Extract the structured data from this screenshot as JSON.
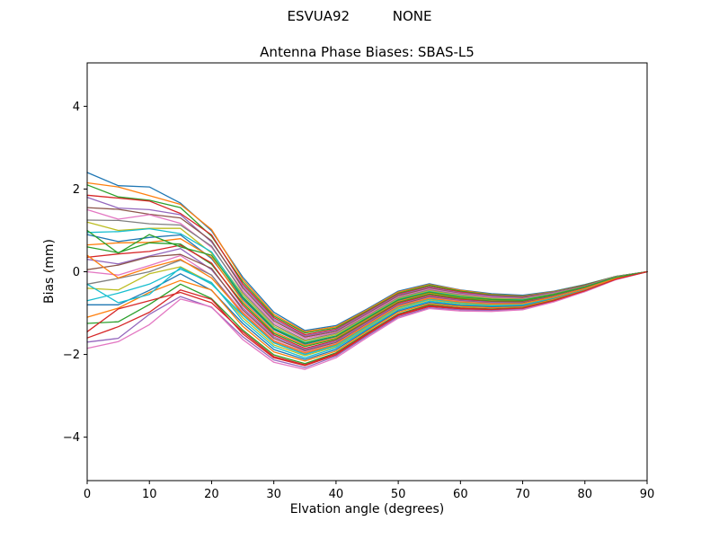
{
  "chart_data": {
    "type": "line",
    "suptitle": "ESVUA92          NONE",
    "title": "Antenna Phase Biases: SBAS-L5",
    "xlabel": "Elvation angle (degrees)",
    "ylabel": "Bias (mm)",
    "xlim": [
      0,
      90
    ],
    "ylim": [
      -5.05,
      5.05
    ],
    "grid": false,
    "legend": null,
    "xticks": {
      "values": [
        0,
        10,
        20,
        30,
        40,
        50,
        60,
        70,
        80,
        90
      ],
      "labels": [
        "0",
        "10",
        "20",
        "30",
        "40",
        "50",
        "60",
        "70",
        "80",
        "90"
      ]
    },
    "yticks": {
      "values": [
        -4,
        -2,
        0,
        2,
        4
      ],
      "labels": [
        "−4",
        "−2",
        "0",
        "2",
        "4"
      ]
    },
    "x": [
      0,
      5,
      10,
      15,
      20,
      25,
      30,
      35,
      40,
      45,
      50,
      55,
      60,
      65,
      70,
      75,
      80,
      85,
      90
    ],
    "series": [
      {
        "color": "#1f77b4",
        "values": [
          2.4,
          2.08,
          2.05,
          1.66,
          0.99,
          -0.13,
          -0.98,
          -1.42,
          -1.3,
          -0.9,
          -0.47,
          -0.29,
          -0.44,
          -0.53,
          -0.57,
          -0.47,
          -0.31,
          -0.11,
          0.0
        ]
      },
      {
        "color": "#ff7f0e",
        "values": [
          2.15,
          2.05,
          1.84,
          1.63,
          1.02,
          -0.18,
          -1.03,
          -1.45,
          -1.33,
          -0.92,
          -0.49,
          -0.31,
          -0.45,
          -0.55,
          -0.59,
          -0.48,
          -0.32,
          -0.11,
          0.0
        ]
      },
      {
        "color": "#2ca02c",
        "values": [
          2.1,
          1.81,
          1.73,
          1.55,
          0.86,
          -0.24,
          -1.07,
          -1.48,
          -1.36,
          -0.95,
          -0.52,
          -0.33,
          -0.47,
          -0.56,
          -0.6,
          -0.49,
          -0.32,
          -0.11,
          0.0
        ]
      },
      {
        "color": "#d62728",
        "values": [
          1.85,
          1.78,
          1.71,
          1.41,
          0.89,
          -0.29,
          -1.11,
          -1.52,
          -1.39,
          -0.97,
          -0.54,
          -0.36,
          -0.49,
          -0.58,
          -0.61,
          -0.5,
          -0.33,
          -0.12,
          0.0
        ]
      },
      {
        "color": "#9467bd",
        "values": [
          1.8,
          1.54,
          1.5,
          1.38,
          0.72,
          -0.34,
          -1.15,
          -1.55,
          -1.41,
          -0.99,
          -0.56,
          -0.38,
          -0.51,
          -0.59,
          -0.62,
          -0.5,
          -0.34,
          -0.12,
          0.0
        ]
      },
      {
        "color": "#8c564b",
        "values": [
          1.55,
          1.51,
          1.39,
          1.3,
          0.75,
          -0.39,
          -1.19,
          -1.58,
          -1.44,
          -1.02,
          -0.58,
          -0.4,
          -0.53,
          -0.61,
          -0.63,
          -0.51,
          -0.34,
          -0.12,
          0.0
        ]
      },
      {
        "color": "#e377c2",
        "values": [
          1.5,
          1.27,
          1.38,
          1.17,
          0.59,
          -0.45,
          -1.24,
          -1.61,
          -1.47,
          -1.04,
          -0.61,
          -0.42,
          -0.54,
          -0.62,
          -0.65,
          -0.52,
          -0.35,
          -0.12,
          0.0
        ]
      },
      {
        "color": "#7f7f7f",
        "values": [
          1.25,
          1.24,
          1.16,
          1.13,
          0.62,
          -0.5,
          -1.28,
          -1.65,
          -1.49,
          -1.07,
          -0.63,
          -0.44,
          -0.56,
          -0.64,
          -0.66,
          -0.53,
          -0.35,
          -0.13,
          0.0
        ]
      },
      {
        "color": "#bcbd22",
        "values": [
          1.2,
          1.0,
          1.05,
          1.05,
          0.45,
          -0.55,
          -1.32,
          -1.68,
          -1.52,
          -1.09,
          -0.65,
          -0.46,
          -0.58,
          -0.65,
          -0.67,
          -0.54,
          -0.36,
          -0.13,
          0.0
        ]
      },
      {
        "color": "#17becf",
        "values": [
          0.95,
          0.97,
          1.04,
          0.92,
          0.48,
          -0.6,
          -1.36,
          -1.71,
          -1.55,
          -1.11,
          -0.67,
          -0.48,
          -0.6,
          -0.67,
          -0.68,
          -0.55,
          -0.37,
          -0.13,
          0.0
        ]
      },
      {
        "color": "#1f77b4",
        "values": [
          0.9,
          0.73,
          0.83,
          0.89,
          0.32,
          -0.66,
          -1.4,
          -1.75,
          -1.57,
          -1.14,
          -0.7,
          -0.5,
          -0.62,
          -0.68,
          -0.69,
          -0.56,
          -0.37,
          -0.14,
          0.0
        ]
      },
      {
        "color": "#ff7f0e",
        "values": [
          0.65,
          0.7,
          0.71,
          0.8,
          0.35,
          -0.71,
          -1.45,
          -1.78,
          -1.6,
          -1.16,
          -0.72,
          -0.52,
          -0.63,
          -0.7,
          -0.71,
          -0.57,
          -0.38,
          -0.14,
          0.0
        ]
      },
      {
        "color": "#2ca02c",
        "values": [
          0.6,
          0.46,
          0.7,
          0.67,
          0.18,
          -0.76,
          -1.49,
          -1.81,
          -1.63,
          -1.19,
          -0.74,
          -0.54,
          -0.65,
          -0.71,
          -0.72,
          -0.58,
          -0.38,
          -0.14,
          0.0
        ]
      },
      {
        "color": "#d62728",
        "values": [
          0.35,
          0.43,
          0.49,
          0.64,
          0.21,
          -0.81,
          -1.53,
          -1.85,
          -1.66,
          -1.21,
          -0.76,
          -0.57,
          -0.67,
          -0.73,
          -0.73,
          -0.59,
          -0.39,
          -0.15,
          0.0
        ]
      },
      {
        "color": "#9467bd",
        "values": [
          0.3,
          0.19,
          0.38,
          0.56,
          0.05,
          -0.87,
          -1.57,
          -1.88,
          -1.68,
          -1.23,
          -0.79,
          -0.59,
          -0.69,
          -0.74,
          -0.74,
          -0.59,
          -0.4,
          -0.15,
          0.0
        ]
      },
      {
        "color": "#8c564b",
        "values": [
          0.05,
          0.16,
          0.36,
          0.42,
          0.08,
          -0.92,
          -1.61,
          -1.91,
          -1.71,
          -1.26,
          -0.81,
          -0.61,
          -0.71,
          -0.76,
          -0.75,
          -0.6,
          -0.4,
          -0.15,
          0.0
        ]
      },
      {
        "color": "#e377c2",
        "values": [
          0.0,
          -0.08,
          0.15,
          0.39,
          -0.09,
          -0.97,
          -1.66,
          -1.94,
          -1.74,
          -1.28,
          -0.83,
          -0.63,
          -0.72,
          -0.77,
          -0.77,
          -0.61,
          -0.41,
          -0.15,
          0.0
        ]
      },
      {
        "color": "#7f7f7f",
        "values": [
          -0.3,
          -0.16,
          0.0,
          0.28,
          -0.08,
          -1.04,
          -1.71,
          -1.99,
          -1.77,
          -1.31,
          -0.86,
          -0.66,
          -0.75,
          -0.79,
          -0.78,
          -0.62,
          -0.42,
          -0.16,
          0.0
        ]
      },
      {
        "color": "#bcbd22",
        "values": [
          -0.4,
          -0.44,
          -0.05,
          0.12,
          -0.27,
          -1.11,
          -1.77,
          -2.03,
          -1.81,
          -1.35,
          -0.89,
          -0.68,
          -0.77,
          -0.81,
          -0.8,
          -0.64,
          -0.42,
          -0.16,
          0.0
        ]
      },
      {
        "color": "#17becf",
        "values": [
          -0.7,
          -0.52,
          -0.3,
          0.06,
          -0.26,
          -1.18,
          -1.82,
          -2.08,
          -1.84,
          -1.38,
          -0.92,
          -0.71,
          -0.8,
          -0.83,
          -0.81,
          -0.65,
          -0.43,
          -0.17,
          0.0
        ]
      },
      {
        "color": "#1f77b4",
        "values": [
          -0.8,
          -0.8,
          -0.45,
          -0.05,
          -0.45,
          -1.25,
          -1.88,
          -2.12,
          -1.88,
          -1.41,
          -0.95,
          -0.74,
          -0.82,
          -0.85,
          -0.83,
          -0.66,
          -0.44,
          -0.17,
          0.0
        ]
      },
      {
        "color": "#ff7f0e",
        "values": [
          -1.1,
          -0.88,
          -0.5,
          -0.21,
          -0.44,
          -1.32,
          -1.94,
          -2.16,
          -1.92,
          -1.44,
          -0.98,
          -0.77,
          -0.84,
          -0.87,
          -0.85,
          -0.67,
          -0.45,
          -0.17,
          0.0
        ]
      },
      {
        "color": "#2ca02c",
        "values": [
          -1.25,
          -1.21,
          -0.79,
          -0.3,
          -0.65,
          -1.41,
          -2.01,
          -2.22,
          -1.96,
          -1.48,
          -1.02,
          -0.8,
          -0.87,
          -0.9,
          -0.87,
          -0.69,
          -0.46,
          -0.18,
          0.0
        ]
      },
      {
        "color": "#d62728",
        "values": [
          -1.6,
          -1.33,
          -0.98,
          -0.44,
          -0.67,
          -1.5,
          -2.08,
          -2.27,
          -2.01,
          -1.52,
          -1.06,
          -0.84,
          -0.9,
          -0.92,
          -0.89,
          -0.7,
          -0.47,
          -0.18,
          0.0
        ]
      },
      {
        "color": "#9467bd",
        "values": [
          -1.7,
          -1.61,
          -1.03,
          -0.6,
          -0.86,
          -1.57,
          -2.13,
          -2.32,
          -2.04,
          -1.55,
          -1.09,
          -0.87,
          -0.92,
          -0.94,
          -0.9,
          -0.71,
          -0.48,
          -0.19,
          0.0
        ]
      },
      {
        "color": "#e377c2",
        "values": [
          -1.85,
          -1.69,
          -1.28,
          -0.66,
          -0.85,
          -1.64,
          -2.19,
          -2.36,
          -2.08,
          -1.59,
          -1.12,
          -0.89,
          -0.95,
          -0.96,
          -0.92,
          -0.73,
          -0.48,
          -0.19,
          0.0
        ]
      },
      {
        "color": "#17becf",
        "values": [
          -0.3,
          -0.75,
          -0.55,
          0.1,
          -0.3,
          -1.05,
          -1.72,
          -2.0,
          -1.78,
          -1.32,
          -0.86,
          -0.66,
          -0.75,
          -0.79,
          -0.78,
          -0.62,
          -0.42,
          -0.16,
          0.0
        ]
      },
      {
        "color": "#ff7f0e",
        "values": [
          0.4,
          -0.15,
          0.1,
          0.3,
          -0.15,
          -1.0,
          -1.68,
          -1.96,
          -1.75,
          -1.29,
          -0.84,
          -0.64,
          -0.73,
          -0.78,
          -0.77,
          -0.61,
          -0.41,
          -0.16,
          0.0
        ]
      },
      {
        "color": "#2ca02c",
        "values": [
          1.0,
          0.45,
          0.9,
          0.6,
          0.4,
          -0.62,
          -1.38,
          -1.73,
          -1.56,
          -1.12,
          -0.68,
          -0.49,
          -0.61,
          -0.67,
          -0.69,
          -0.55,
          -0.37,
          -0.13,
          0.0
        ]
      },
      {
        "color": "#d62728",
        "values": [
          -1.45,
          -0.9,
          -0.7,
          -0.5,
          -0.75,
          -1.45,
          -2.05,
          -2.25,
          -1.98,
          -1.5,
          -1.04,
          -0.82,
          -0.88,
          -0.91,
          -0.88,
          -0.7,
          -0.46,
          -0.18,
          0.0
        ]
      }
    ]
  }
}
